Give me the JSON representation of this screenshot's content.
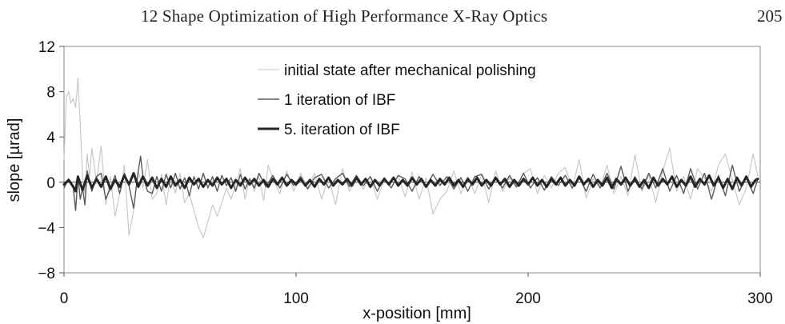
{
  "header": {
    "running_head": "12  Shape Optimization of High Performance X-Ray Optics",
    "page_number": "205"
  },
  "chart_data": {
    "type": "line",
    "title": "",
    "xlabel": "x-position [mm]",
    "ylabel": "slope [µrad]",
    "xlim": [
      0,
      300
    ],
    "ylim": [
      -8,
      12
    ],
    "x_ticks": [
      0,
      100,
      200,
      300
    ],
    "x_tick_labels": [
      "0",
      "100",
      "200",
      "300"
    ],
    "y_ticks": [
      12,
      8,
      4,
      0,
      -4,
      -8
    ],
    "y_tick_labels": [
      "12",
      "8",
      "4",
      "0",
      "−4",
      "−8"
    ],
    "grid": false,
    "zero_line": true,
    "legend_position": "top-center",
    "series": [
      {
        "name": "initial state after mechanical polishing",
        "color": "#c4c4c4",
        "line_width": 1.1,
        "x": [
          0,
          1,
          2,
          3,
          4,
          5,
          6,
          7,
          8,
          9,
          10,
          11,
          12,
          14,
          16,
          18,
          20,
          22,
          24,
          26,
          28,
          30,
          32,
          34,
          36,
          38,
          40,
          42,
          44,
          46,
          48,
          50,
          52,
          54,
          56,
          58,
          60,
          62,
          64,
          66,
          68,
          70,
          72,
          74,
          76,
          78,
          80,
          82,
          84,
          86,
          88,
          90,
          93,
          96,
          99,
          102,
          105,
          108,
          111,
          114,
          117,
          120,
          123,
          126,
          129,
          132,
          135,
          138,
          141,
          144,
          147,
          150,
          153,
          156,
          159,
          162,
          165,
          168,
          171,
          174,
          177,
          180,
          183,
          186,
          189,
          192,
          195,
          198,
          201,
          204,
          207,
          210,
          213,
          216,
          219,
          222,
          225,
          228,
          231,
          234,
          237,
          240,
          243,
          246,
          249,
          252,
          255,
          258,
          261,
          264,
          267,
          270,
          273,
          276,
          279,
          282,
          285,
          288,
          291,
          294,
          297,
          299
        ],
        "y": [
          2.0,
          7.5,
          8.0,
          7.0,
          7.4,
          6.6,
          9.2,
          5.0,
          0.5,
          -1.0,
          2.5,
          0.5,
          3.0,
          0.0,
          3.2,
          -2.0,
          0.5,
          -3.0,
          -1.0,
          1.5,
          -4.7,
          -2.5,
          1.0,
          -0.5,
          2.0,
          -1.5,
          -1.0,
          0.7,
          -2.0,
          0.5,
          -1.0,
          0.8,
          -1.8,
          -1.0,
          -2.5,
          -4.0,
          -4.9,
          -3.5,
          -2.0,
          -3.0,
          -1.8,
          -0.5,
          -1.5,
          -0.3,
          1.2,
          -1.5,
          0.4,
          -0.8,
          0.6,
          -1.6,
          1.5,
          0.3,
          -1.0,
          1.0,
          -0.8,
          0.8,
          -0.5,
          0.8,
          -1.5,
          0.5,
          -2.0,
          1.2,
          -0.8,
          0.4,
          -0.6,
          0.5,
          -1.5,
          0.2,
          -0.5,
          0.6,
          -1.3,
          0.9,
          -1.5,
          0.4,
          -2.8,
          -1.5,
          -0.8,
          1.0,
          -1.0,
          0.5,
          -1.0,
          0.7,
          -1.8,
          1.0,
          -0.8,
          0.4,
          -0.5,
          0.8,
          1.2,
          -1.0,
          0.6,
          -0.5,
          0.8,
          1.3,
          -0.6,
          2.0,
          -1.4,
          0.3,
          -0.5,
          1.5,
          -1.0,
          0.5,
          -1.2,
          2.4,
          -0.8,
          0.6,
          -1.8,
          1.0,
          3.0,
          -0.8,
          0.5,
          -1.5,
          1.2,
          0.4,
          -0.8,
          1.5,
          2.5,
          0.2,
          -2.0,
          -0.5,
          2.5,
          0.5
        ]
      },
      {
        "name": "1 iteration of IBF",
        "color": "#5a5a5a",
        "line_width": 1.4,
        "x": [
          0,
          2,
          4,
          5,
          6,
          7,
          8,
          9,
          10,
          12,
          14,
          16,
          18,
          20,
          22,
          24,
          26,
          28,
          30,
          32,
          33,
          34,
          36,
          38,
          40,
          42,
          44,
          46,
          48,
          50,
          52,
          54,
          56,
          58,
          60,
          62,
          64,
          66,
          68,
          70,
          72,
          74,
          76,
          78,
          80,
          82,
          84,
          87,
          90,
          93,
          96,
          99,
          102,
          105,
          108,
          111,
          114,
          117,
          120,
          123,
          126,
          129,
          132,
          135,
          138,
          141,
          144,
          147,
          150,
          153,
          156,
          159,
          162,
          165,
          168,
          171,
          174,
          177,
          180,
          183,
          186,
          189,
          192,
          195,
          198,
          201,
          204,
          207,
          210,
          213,
          216,
          219,
          222,
          225,
          228,
          231,
          234,
          237,
          240,
          243,
          246,
          249,
          252,
          255,
          258,
          261,
          264,
          267,
          270,
          273,
          276,
          279,
          282,
          285,
          288,
          291,
          294,
          297,
          299
        ],
        "y": [
          -0.5,
          0.3,
          -0.5,
          -2.5,
          0.5,
          -1.5,
          -0.5,
          -2.0,
          1.0,
          -0.8,
          0.5,
          0.8,
          -1.5,
          -0.5,
          0.6,
          -1.0,
          0.8,
          -0.3,
          -2.3,
          1.0,
          2.3,
          0.5,
          -0.8,
          -1.0,
          0.5,
          -0.8,
          0.7,
          -0.5,
          0.8,
          -0.6,
          0.4,
          -1.2,
          0.5,
          -0.6,
          0.8,
          -0.5,
          0.5,
          -0.8,
          0.6,
          -0.3,
          0.4,
          -0.8,
          0.7,
          -0.6,
          0.3,
          -0.5,
          0.8,
          -0.4,
          0.6,
          -0.5,
          0.7,
          -0.3,
          0.5,
          -0.6,
          0.4,
          0.7,
          -0.5,
          0.3,
          0.8,
          -0.4,
          0.6,
          -0.3,
          0.5,
          -0.8,
          0.4,
          -0.5,
          0.6,
          0.3,
          -0.8,
          0.5,
          -0.4,
          0.7,
          -0.3,
          0.5,
          -0.6,
          0.4,
          -0.8,
          0.5,
          0.7,
          -0.6,
          0.3,
          -0.5,
          0.6,
          -0.4,
          0.8,
          -0.5,
          0.4,
          -0.7,
          0.5,
          -0.3,
          0.6,
          -0.5,
          0.4,
          -0.8,
          0.7,
          -0.5,
          0.8,
          -0.6,
          1.4,
          -0.8,
          0.5,
          -0.6,
          0.8,
          -0.5,
          1.2,
          -0.8,
          0.6,
          -1.0,
          1.2,
          -0.6,
          0.8,
          -1.5,
          0.6,
          -1.2,
          1.5,
          -0.8,
          0.5,
          -1.0,
          0.3
        ]
      },
      {
        "name": "5. iteration of IBF",
        "color": "#262626",
        "line_width": 3.0,
        "x": [
          0,
          2,
          4,
          5,
          6,
          8,
          10,
          12,
          14,
          16,
          18,
          20,
          22,
          24,
          26,
          28,
          30,
          32,
          34,
          36,
          38,
          40,
          42,
          44,
          46,
          48,
          50,
          52,
          54,
          56,
          58,
          60,
          62,
          64,
          66,
          68,
          70,
          72,
          74,
          76,
          78,
          80,
          82,
          84,
          86,
          88,
          90,
          92,
          94,
          96,
          98,
          100,
          102,
          104,
          106,
          108,
          110,
          112,
          114,
          116,
          118,
          120,
          122,
          124,
          126,
          128,
          130,
          132,
          134,
          136,
          138,
          140,
          142,
          144,
          146,
          148,
          150,
          152,
          154,
          156,
          158,
          160,
          162,
          164,
          166,
          168,
          170,
          172,
          174,
          176,
          178,
          180,
          182,
          184,
          186,
          188,
          190,
          192,
          194,
          196,
          198,
          200,
          202,
          204,
          206,
          208,
          210,
          212,
          214,
          216,
          218,
          220,
          222,
          224,
          226,
          228,
          230,
          232,
          234,
          236,
          238,
          240,
          242,
          244,
          246,
          248,
          250,
          252,
          254,
          256,
          258,
          260,
          262,
          264,
          266,
          268,
          270,
          272,
          274,
          276,
          278,
          280,
          282,
          284,
          286,
          288,
          290,
          292,
          294,
          296,
          298,
          299
        ],
        "y": [
          -0.2,
          0.2,
          -0.4,
          -0.8,
          0.5,
          -0.7,
          0.6,
          -0.5,
          0.3,
          -0.4,
          0.5,
          -0.6,
          0.2,
          -0.4,
          0.6,
          -0.2,
          0.8,
          -0.4,
          0.5,
          -0.3,
          0.4,
          -0.5,
          0.3,
          -0.4,
          0.5,
          -0.3,
          0.2,
          -0.5,
          0.4,
          -0.2,
          0.3,
          -0.4,
          0.2,
          -0.3,
          0.4,
          -0.2,
          0.3,
          -0.5,
          0.2,
          -0.3,
          0.4,
          -0.2,
          0.3,
          -0.3,
          0.2,
          -0.4,
          0.3,
          -0.2,
          0.4,
          -0.3,
          0.2,
          -0.2,
          0.3,
          -0.3,
          0.2,
          -0.4,
          0.3,
          -0.2,
          0.4,
          -0.3,
          0.2,
          -0.2,
          0.3,
          -0.3,
          0.4,
          -0.2,
          0.3,
          -0.4,
          0.2,
          -0.3,
          0.3,
          -0.2,
          0.4,
          -0.3,
          0.2,
          -0.3,
          0.4,
          -0.2,
          0.3,
          -0.4,
          0.2,
          -0.3,
          0.3,
          -0.2,
          0.4,
          -0.3,
          0.2,
          -0.4,
          0.3,
          -0.2,
          0.4,
          -0.3,
          0.2,
          -0.3,
          0.4,
          -0.2,
          0.3,
          -0.4,
          0.2,
          -0.3,
          0.3,
          -0.2,
          0.4,
          -0.3,
          0.2,
          -0.4,
          0.3,
          -0.2,
          0.4,
          -0.3,
          0.2,
          -0.3,
          0.5,
          -0.2,
          0.3,
          -0.4,
          0.2,
          -0.3,
          0.4,
          -0.5,
          0.3,
          -0.2,
          0.4,
          -0.3,
          0.3,
          -0.4,
          0.2,
          -0.5,
          0.4,
          -0.3,
          0.3,
          -0.2,
          0.5,
          -0.4,
          0.2,
          -0.3,
          0.5,
          -0.4,
          0.3,
          -0.2,
          0.6,
          -0.3,
          0.4,
          -0.5,
          0.3,
          -0.6,
          0.4,
          -0.3,
          0.5,
          -0.4,
          0.2,
          0.3
        ]
      }
    ]
  }
}
